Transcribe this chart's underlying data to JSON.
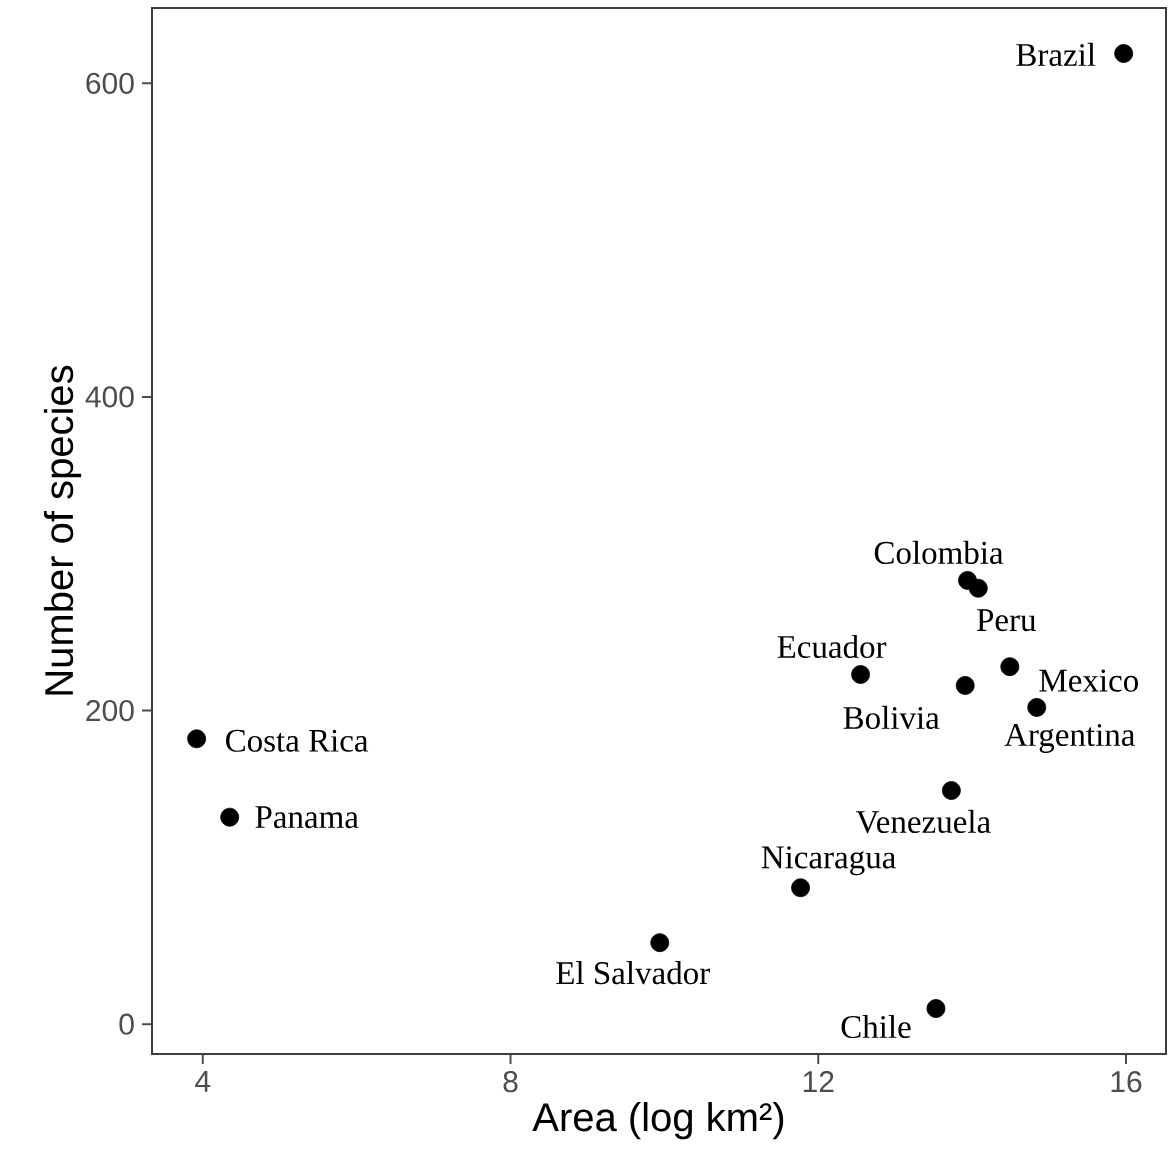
{
  "chart_data": {
    "type": "scatter",
    "xlabel": "Area (log km²)",
    "ylabel": "Number of species",
    "color": "#000000",
    "x": [
      15.97,
      13.94,
      14.08,
      12.55,
      14.49,
      13.91,
      14.84,
      3.92,
      4.35,
      13.73,
      11.77,
      9.94,
      13.53
    ],
    "values": [
      619,
      283,
      278,
      223,
      228,
      216,
      202,
      182,
      132,
      149,
      87,
      52,
      10
    ],
    "xlim": [
      3.34,
      16.52
    ],
    "ylim": [
      -19,
      648
    ],
    "xticks": [
      4,
      8,
      12,
      16
    ],
    "yticks": [
      0,
      200,
      400,
      600
    ],
    "annotations": [
      {
        "text": "Brazil",
        "x": 15.97,
        "y": 619
      },
      {
        "text": "Colombia",
        "x": 13.94,
        "y": 283
      },
      {
        "text": "Peru",
        "x": 14.08,
        "y": 278
      },
      {
        "text": "Ecuador",
        "x": 12.55,
        "y": 223
      },
      {
        "text": "Mexico",
        "x": 14.49,
        "y": 228
      },
      {
        "text": "Bolivia",
        "x": 13.91,
        "y": 216
      },
      {
        "text": "Argentina",
        "x": 14.84,
        "y": 202
      },
      {
        "text": "Costa Rica",
        "x": 3.92,
        "y": 182
      },
      {
        "text": "Panama",
        "x": 4.35,
        "y": 132
      },
      {
        "text": "Venezuela",
        "x": 13.73,
        "y": 149
      },
      {
        "text": "Nicaragua",
        "x": 11.77,
        "y": 87
      },
      {
        "text": "El Salvador",
        "x": 9.94,
        "y": 52
      },
      {
        "text": "Chile",
        "x": 13.53,
        "y": 10
      }
    ]
  }
}
